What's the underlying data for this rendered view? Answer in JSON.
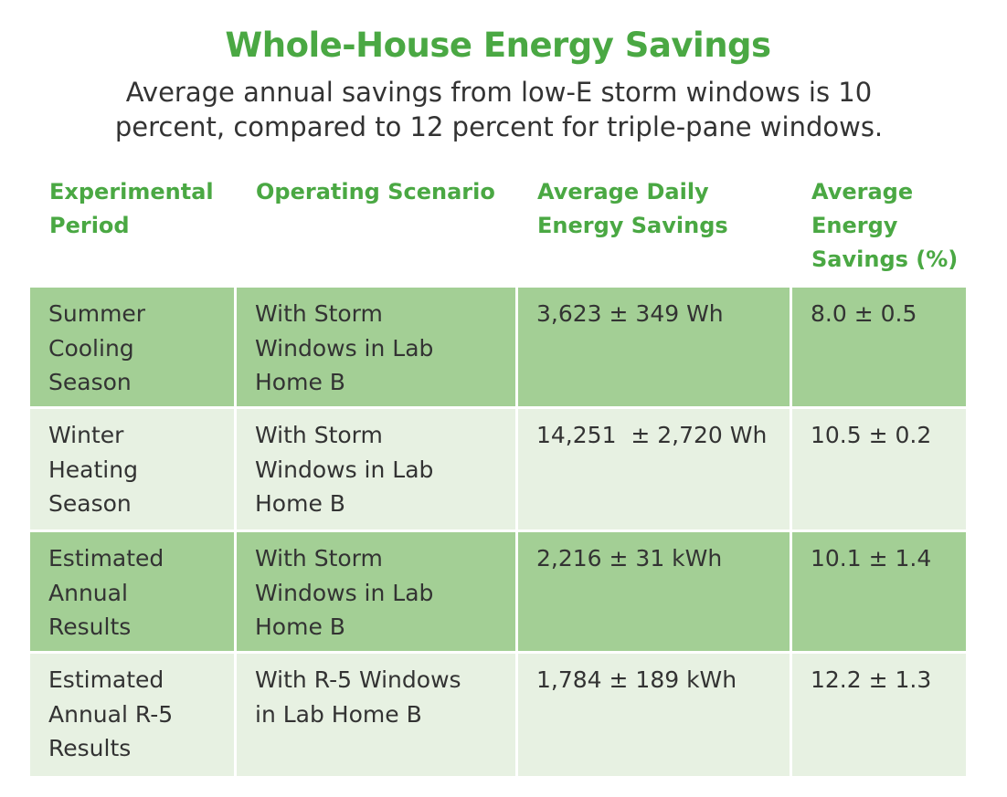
{
  "title": "Whole-House Energy Savings",
  "subtitle_lines": [
    "Average annual savings from low-E storm windows is 10",
    "percent, compared to 12 percent for triple-pane windows."
  ],
  "colors": {
    "title_green": "#4aa843",
    "header_green": "#4aa843",
    "row_dark": "#a3cf95",
    "row_light": "#e7f1e2",
    "body_text": "#333333"
  },
  "columns": [
    {
      "lines": [
        "Experimental",
        "Period"
      ]
    },
    {
      "lines": [
        "Operating Scenario"
      ]
    },
    {
      "lines": [
        "Average Daily",
        "Energy Savings"
      ]
    },
    {
      "lines": [
        "Average",
        "Energy",
        "Savings (%)"
      ]
    }
  ],
  "rows": [
    {
      "shade": "dark",
      "period": [
        "Summer",
        "Cooling",
        "Season"
      ],
      "scenario": [
        "With Storm",
        "Windows in Lab",
        "Home B"
      ],
      "daily_savings": "3,623 ± 349 Wh",
      "percent_savings": "8.0 ± 0.5"
    },
    {
      "shade": "light",
      "period": [
        "Winter",
        "Heating",
        "Season"
      ],
      "scenario": [
        "With Storm",
        "Windows in Lab",
        "Home B"
      ],
      "daily_savings": "14,251  ± 2,720 Wh",
      "percent_savings": "10.5 ± 0.2"
    },
    {
      "shade": "dark",
      "period": [
        "Estimated",
        "Annual",
        "Results"
      ],
      "scenario": [
        "With Storm",
        "Windows in Lab",
        "Home B"
      ],
      "daily_savings": "2,216 ± 31 kWh",
      "percent_savings": "10.1 ± 1.4"
    },
    {
      "shade": "light",
      "period": [
        "Estimated",
        "Annual R-5",
        "Results"
      ],
      "scenario": [
        "With R-5 Windows",
        "in Lab Home B"
      ],
      "daily_savings": "1,784 ± 189 kWh",
      "percent_savings": "12.2 ± 1.3"
    }
  ]
}
